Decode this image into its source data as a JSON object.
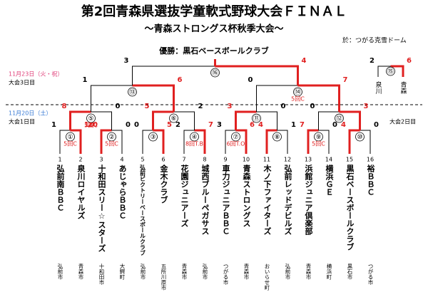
{
  "header": {
    "title": "第2回青森県選抜学童軟式野球大会ＦＩＮＡＬ",
    "subtitle": "～青森ストロングス杯秋季大会～",
    "venue": "於：つがる克雪ドーム",
    "winner": "優勝：黒石ベースボールクラブ"
  },
  "dates": {
    "day3": {
      "date": "11月23日（火・祝）",
      "label": "大会3日目"
    },
    "day1": {
      "date": "11月20日（土）",
      "label": "大会1日目"
    },
    "day2": {
      "label": "大会2日目"
    }
  },
  "teams": [
    {
      "no": "1",
      "name": "弘前南ＢＢＣ",
      "town": "弘前市"
    },
    {
      "no": "2",
      "name": "泉川ロイヤルズ",
      "town": "青森市"
    },
    {
      "no": "3",
      "name": "十和田スリー☆スターズ",
      "town": "十和田市"
    },
    {
      "no": "4",
      "name": "あじゃらＢＢＣ",
      "town": "大鰐町"
    },
    {
      "no": "5",
      "name": "弘前ビクトリーベースボールクラブ",
      "town": "弘前市"
    },
    {
      "no": "6",
      "name": "金木クラブ",
      "town": "五所川原市"
    },
    {
      "no": "7",
      "name": "花園ジュニアーズ",
      "town": "青森市"
    },
    {
      "no": "8",
      "name": "城西ブルーペガサス",
      "town": "弘前市"
    },
    {
      "no": "9",
      "name": "車力ジュニアＢＢＣ",
      "town": "つがる市"
    },
    {
      "no": "10",
      "name": "青森ストロングス",
      "town": "青森市"
    },
    {
      "no": "11",
      "name": "木ノ下ファイターズ",
      "town": "おいらせ町"
    },
    {
      "no": "12",
      "name": "弘前レッドデビルズ",
      "town": "弘前市"
    },
    {
      "no": "13",
      "name": "浜館ジュニア倶楽部",
      "town": "青森市"
    },
    {
      "no": "14",
      "name": "横浜ＧＥ",
      "town": "横浜町"
    },
    {
      "no": "15",
      "name": "黒石ベースボールクラブ",
      "town": "黒石市"
    },
    {
      "no": "16",
      "name": "裕ＢＢＣ",
      "town": "つがる市"
    }
  ],
  "matches": [
    {
      "id": "①",
      "scores": [
        1,
        10
      ],
      "note": "5回C"
    },
    {
      "id": "②",
      "scores": [
        20,
        0
      ],
      "note": "5回C"
    },
    {
      "id": "③",
      "scores": [
        0,
        5
      ]
    },
    {
      "id": "④",
      "scores": [
        2,
        7
      ],
      "note": "8回T.B"
    },
    {
      "id": "⑤",
      "scores": [
        8,
        0
      ],
      "note": "5回C"
    },
    {
      "id": "⑥",
      "scores": [
        5,
        2
      ]
    },
    {
      "id": "⑦",
      "scores": [
        3,
        6
      ],
      "note": "6回T.O"
    },
    {
      "id": "⑧",
      "scores": [
        4,
        1
      ]
    },
    {
      "id": "⑨",
      "scores": [
        7,
        0
      ],
      "note": "5回C"
    },
    {
      "id": "⑩",
      "scores": [
        4,
        0
      ]
    },
    {
      "id": "⑪",
      "scores": [
        3,
        0
      ]
    },
    {
      "id": "⑫",
      "scores": [
        0,
        3
      ]
    },
    {
      "id": "⑬",
      "scores": [
        1,
        6
      ]
    },
    {
      "id": "⑭",
      "scores": [
        0,
        7
      ],
      "note": "5回C"
    },
    {
      "id": "⑯",
      "scores": [
        3,
        4
      ]
    }
  ],
  "third_place": {
    "id": "⑮",
    "teams": [
      "泉川",
      "青森"
    ],
    "scores": [
      2,
      6
    ]
  }
}
